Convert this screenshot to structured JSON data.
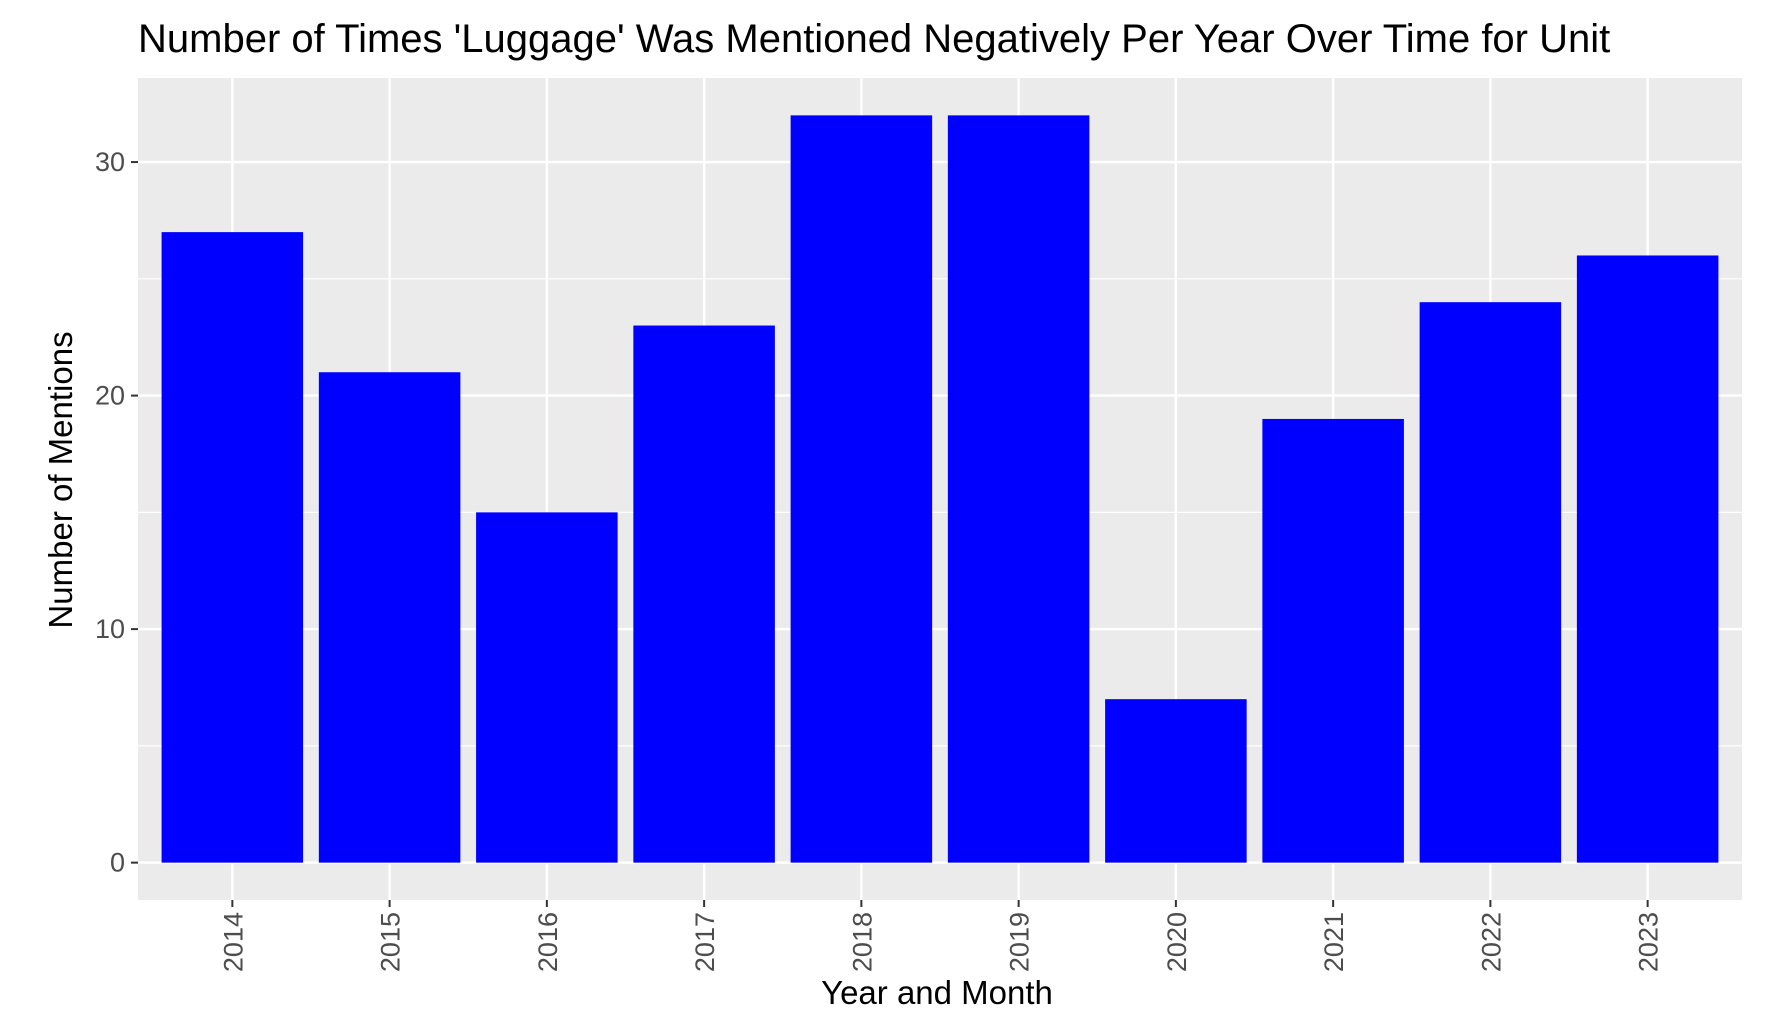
{
  "chart_data": {
    "type": "bar",
    "title": "Number of Times 'Luggage' Was Mentioned Negatively Per Year Over Time for Unit",
    "xlabel": "Year and Month",
    "ylabel": "Number of Mentions",
    "categories": [
      "2014",
      "2015",
      "2016",
      "2017",
      "2018",
      "2019",
      "2020",
      "2021",
      "2022",
      "2023"
    ],
    "values": [
      27,
      21,
      15,
      23,
      32,
      32,
      7,
      19,
      24,
      26
    ],
    "ylim": [
      -1.6,
      33.6
    ],
    "yticks": [
      0,
      10,
      20,
      30
    ],
    "ytick_labels": [
      "0",
      "10",
      "20",
      "30"
    ],
    "grid": true,
    "legend": "none",
    "colors": {
      "bar": "#0000ff",
      "panel": "#ebebeb",
      "grid": "#ffffff",
      "text": "#000000",
      "tick_text": "#4d4d4d"
    }
  }
}
